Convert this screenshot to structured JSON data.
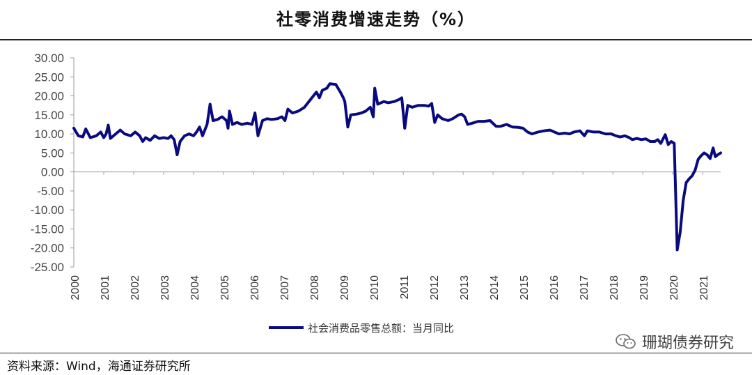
{
  "title": "社零消费增速走势（%）",
  "source": "资料来源：Wind，海通证券研究所",
  "watermark": "珊瑚债券研究",
  "watermark_icon": "wechat-icon",
  "colors": {
    "series": "#0a0a80",
    "text": "#333333"
  },
  "chart_data": {
    "type": "line",
    "title": "社零消费增速走势（%）",
    "xlabel": "",
    "ylabel": "",
    "ylim": [
      -25,
      30
    ],
    "yticks": [
      "30.00",
      "25.00",
      "20.00",
      "15.00",
      "10.00",
      "5.00",
      "0.00",
      "-5.00",
      "-10.00",
      "-15.00",
      "-20.00",
      "-25.00"
    ],
    "xlim": [
      2000.0,
      2021.6
    ],
    "xticks": [
      "2000",
      "2001",
      "2002",
      "2003",
      "2004",
      "2005",
      "2006",
      "2007",
      "2008",
      "2009",
      "2010",
      "2011",
      "2012",
      "2013",
      "2014",
      "2015",
      "2016",
      "2017",
      "2018",
      "2019",
      "2020",
      "2021"
    ],
    "grid": false,
    "legend_position": "bottom",
    "series": [
      {
        "name": "社会消费品零售总额：当月同比",
        "color": "#0a0a80",
        "points": [
          [
            2000.0,
            11.5
          ],
          [
            2000.15,
            9.5
          ],
          [
            2000.3,
            9.2
          ],
          [
            2000.4,
            11.3
          ],
          [
            2000.55,
            9.0
          ],
          [
            2000.75,
            9.5
          ],
          [
            2000.9,
            10.5
          ],
          [
            2001.0,
            9.0
          ],
          [
            2001.08,
            10.0
          ],
          [
            2001.15,
            12.3
          ],
          [
            2001.22,
            8.8
          ],
          [
            2001.4,
            10.0
          ],
          [
            2001.55,
            11.0
          ],
          [
            2001.7,
            10.0
          ],
          [
            2001.9,
            9.5
          ],
          [
            2002.05,
            10.5
          ],
          [
            2002.2,
            9.5
          ],
          [
            2002.3,
            8.0
          ],
          [
            2002.4,
            9.0
          ],
          [
            2002.55,
            8.3
          ],
          [
            2002.7,
            9.5
          ],
          [
            2002.85,
            8.8
          ],
          [
            2003.0,
            9.0
          ],
          [
            2003.15,
            8.8
          ],
          [
            2003.25,
            9.5
          ],
          [
            2003.35,
            8.5
          ],
          [
            2003.45,
            4.5
          ],
          [
            2003.55,
            8.0
          ],
          [
            2003.7,
            9.5
          ],
          [
            2003.85,
            10.0
          ],
          [
            2004.0,
            9.5
          ],
          [
            2004.1,
            10.5
          ],
          [
            2004.2,
            11.8
          ],
          [
            2004.3,
            9.5
          ],
          [
            2004.45,
            12.5
          ],
          [
            2004.55,
            17.8
          ],
          [
            2004.65,
            13.5
          ],
          [
            2004.8,
            13.8
          ],
          [
            2004.95,
            14.5
          ],
          [
            2005.1,
            13.5
          ],
          [
            2005.15,
            11.5
          ],
          [
            2005.2,
            16.0
          ],
          [
            2005.3,
            12.5
          ],
          [
            2005.45,
            13.0
          ],
          [
            2005.6,
            12.5
          ],
          [
            2005.8,
            12.8
          ],
          [
            2005.95,
            12.5
          ],
          [
            2006.05,
            15.5
          ],
          [
            2006.15,
            9.5
          ],
          [
            2006.3,
            13.5
          ],
          [
            2006.45,
            14.0
          ],
          [
            2006.6,
            13.8
          ],
          [
            2006.8,
            14.0
          ],
          [
            2006.95,
            14.5
          ],
          [
            2007.05,
            13.5
          ],
          [
            2007.15,
            16.5
          ],
          [
            2007.3,
            15.5
          ],
          [
            2007.5,
            16.0
          ],
          [
            2007.7,
            17.0
          ],
          [
            2007.9,
            19.0
          ],
          [
            2008.0,
            20.0
          ],
          [
            2008.1,
            21.0
          ],
          [
            2008.2,
            19.5
          ],
          [
            2008.3,
            21.5
          ],
          [
            2008.45,
            22.0
          ],
          [
            2008.55,
            23.2
          ],
          [
            2008.75,
            23.0
          ],
          [
            2008.9,
            21.0
          ],
          [
            2009.0,
            19.5
          ],
          [
            2009.05,
            18.5
          ],
          [
            2009.15,
            11.8
          ],
          [
            2009.25,
            15.0
          ],
          [
            2009.45,
            15.2
          ],
          [
            2009.6,
            15.5
          ],
          [
            2009.75,
            16.0
          ],
          [
            2009.9,
            17.0
          ],
          [
            2010.0,
            14.5
          ],
          [
            2010.05,
            22.0
          ],
          [
            2010.15,
            17.8
          ],
          [
            2010.35,
            18.5
          ],
          [
            2010.5,
            18.2
          ],
          [
            2010.7,
            18.5
          ],
          [
            2010.85,
            19.0
          ],
          [
            2010.95,
            19.5
          ],
          [
            2011.05,
            11.5
          ],
          [
            2011.15,
            17.5
          ],
          [
            2011.3,
            17.0
          ],
          [
            2011.5,
            17.5
          ],
          [
            2011.7,
            17.5
          ],
          [
            2011.85,
            17.3
          ],
          [
            2011.95,
            18.0
          ],
          [
            2012.05,
            13.0
          ],
          [
            2012.15,
            15.0
          ],
          [
            2012.3,
            14.0
          ],
          [
            2012.5,
            13.5
          ],
          [
            2012.65,
            14.0
          ],
          [
            2012.85,
            15.0
          ],
          [
            2012.95,
            15.2
          ],
          [
            2013.05,
            14.5
          ],
          [
            2013.15,
            12.5
          ],
          [
            2013.3,
            12.8
          ],
          [
            2013.5,
            13.3
          ],
          [
            2013.7,
            13.3
          ],
          [
            2013.9,
            13.5
          ],
          [
            2014.1,
            12.0
          ],
          [
            2014.25,
            12.0
          ],
          [
            2014.45,
            12.5
          ],
          [
            2014.65,
            11.8
          ],
          [
            2014.85,
            11.7
          ],
          [
            2015.0,
            11.5
          ],
          [
            2015.15,
            10.5
          ],
          [
            2015.3,
            10.0
          ],
          [
            2015.5,
            10.5
          ],
          [
            2015.7,
            10.8
          ],
          [
            2015.9,
            11.0
          ],
          [
            2016.05,
            10.5
          ],
          [
            2016.2,
            10.0
          ],
          [
            2016.4,
            10.2
          ],
          [
            2016.55,
            10.0
          ],
          [
            2016.7,
            10.5
          ],
          [
            2016.9,
            10.8
          ],
          [
            2017.05,
            9.5
          ],
          [
            2017.15,
            10.8
          ],
          [
            2017.35,
            10.5
          ],
          [
            2017.55,
            10.5
          ],
          [
            2017.75,
            10.0
          ],
          [
            2017.95,
            10.0
          ],
          [
            2018.1,
            9.5
          ],
          [
            2018.25,
            9.2
          ],
          [
            2018.4,
            9.5
          ],
          [
            2018.55,
            9.0
          ],
          [
            2018.65,
            8.5
          ],
          [
            2018.8,
            8.8
          ],
          [
            2018.95,
            8.5
          ],
          [
            2019.1,
            8.7
          ],
          [
            2019.25,
            8.0
          ],
          [
            2019.4,
            8.0
          ],
          [
            2019.5,
            8.5
          ],
          [
            2019.6,
            7.5
          ],
          [
            2019.75,
            9.8
          ],
          [
            2019.85,
            7.2
          ],
          [
            2019.95,
            8.0
          ],
          [
            2020.05,
            7.5
          ],
          [
            2020.15,
            -20.5
          ],
          [
            2020.25,
            -15.8
          ],
          [
            2020.35,
            -7.5
          ],
          [
            2020.45,
            -2.8
          ],
          [
            2020.55,
            -1.8
          ],
          [
            2020.65,
            -1.0
          ],
          [
            2020.75,
            0.5
          ],
          [
            2020.85,
            3.3
          ],
          [
            2020.95,
            4.3
          ],
          [
            2021.05,
            5.0
          ],
          [
            2021.15,
            4.5
          ],
          [
            2021.25,
            3.5
          ],
          [
            2021.35,
            6.3
          ],
          [
            2021.42,
            4.0
          ],
          [
            2021.5,
            4.5
          ],
          [
            2021.6,
            5.0
          ]
        ]
      }
    ]
  }
}
